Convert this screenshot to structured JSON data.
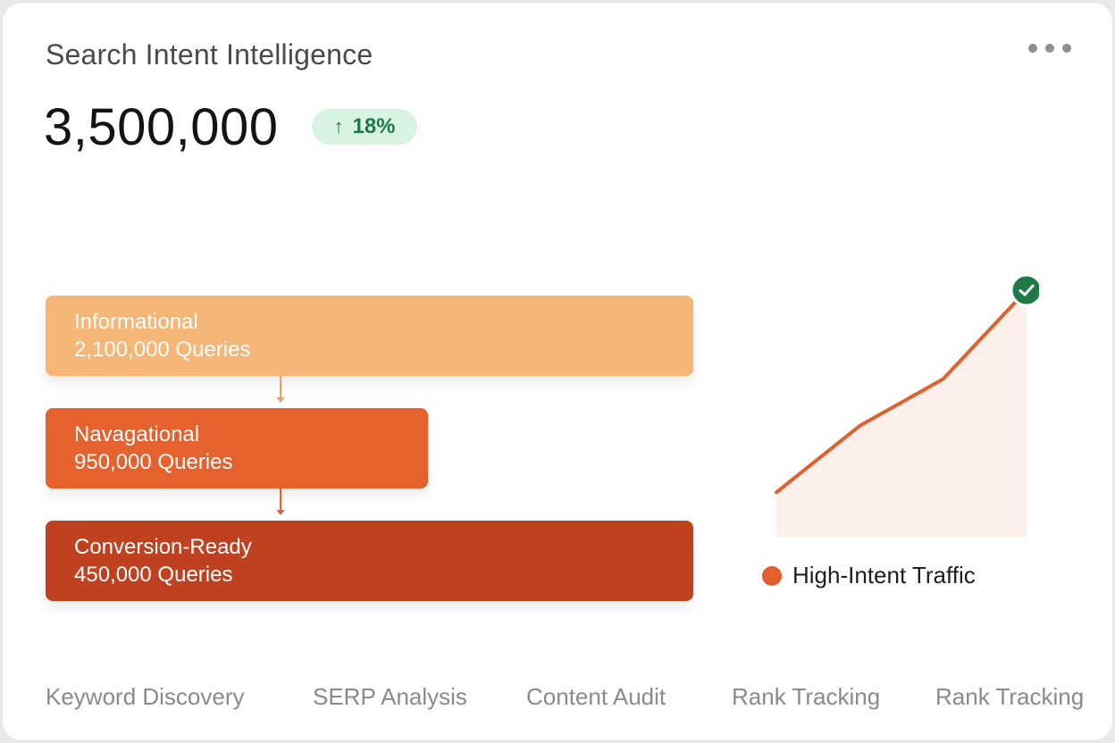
{
  "header": {
    "title": "Search Intent Intelligence",
    "menu_icon": "more-horizontal-icon"
  },
  "metric": {
    "value": "3,500,000",
    "delta_arrow": "↑",
    "delta": "18%",
    "delta_color": "#1f7a46"
  },
  "funnel": {
    "stages": [
      {
        "label": "Informational",
        "count": "2,100,000 Queries",
        "color": "#f5b677"
      },
      {
        "label": "Navagational",
        "count": "950,000 Queries",
        "color": "#e5622e"
      },
      {
        "label": "Conversion-Ready",
        "count": "450,000 Queries",
        "color": "#bf4120"
      }
    ]
  },
  "chart_data": {
    "type": "area",
    "series": [
      {
        "name": "High-Intent Traffic",
        "values": [
          0.18,
          0.45,
          0.64,
          1.0
        ],
        "color": "#e2602d"
      }
    ],
    "end_marker": "check-circle-icon",
    "ylim": [
      0,
      1
    ],
    "grid": false,
    "legend": "bottom"
  },
  "legend": {
    "label": "High-Intent Traffic"
  },
  "tabs": [
    {
      "label": "Keyword Discovery"
    },
    {
      "label": "SERP Analysis"
    },
    {
      "label": "Content Audit"
    },
    {
      "label": "Rank Tracking"
    },
    {
      "label": "Rank Tracking"
    }
  ]
}
